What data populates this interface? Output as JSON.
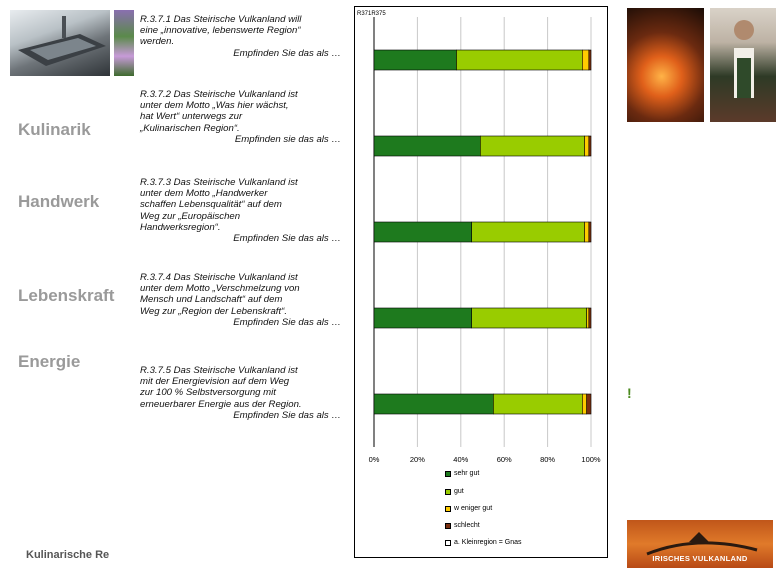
{
  "categories_side": [
    "Kulinarik",
    "Handwerk",
    "Lebenskraft",
    "Energie"
  ],
  "questions": [
    {
      "lines": [
        "R.3.7.1 Das Steirische Vulkanland will",
        "eine „innovative, lebenswerte Region“",
        "werden."
      ],
      "tail": "Empfinden Sie das als …"
    },
    {
      "lines": [
        "R.3.7.2 Das Steirische Vulkanland ist",
        "unter dem Motto „Was hier wächst,",
        "hat Wert“ unterwegs zur",
        "„Kulinarischen Region“."
      ],
      "tail": "Empfinden sie das als …"
    },
    {
      "lines": [
        "R.3.7.3 Das Steirische Vulkanland ist",
        "unter dem Motto „Handwerker",
        "schaffen Lebensqualität“ auf dem",
        "Weg zur „Europäischen",
        "Handwerksregion“."
      ],
      "tail": "Empfinden Sie das als …"
    },
    {
      "lines": [
        "R.3.7.4 Das Steirische Vulkanland ist",
        "unter dem Motto „Verschmelzung von",
        "Mensch und Landschaft“ auf dem",
        "Weg zur „Region der Lebenskraft“."
      ],
      "tail": "Empfinden Sie das als …"
    },
    {
      "lines": [
        "R.3.7.5 Das Steirische Vulkanland ist",
        "mit der Energievision auf dem Weg",
        "zur 100 % Selbstversorgung mit",
        "erneuerbarer Energie aus der Region."
      ],
      "tail": "Empfinden Sie das als …"
    }
  ],
  "footer": "Kulinarische Re",
  "exclamation": "!",
  "logo_text": "IRISCHES VULKANLAND",
  "colors": {
    "sehr_gut": "#1e7a1e",
    "gut": "#99cc00",
    "weniger_gut": "#ffcc00",
    "schlecht": "#7a3010",
    "kleinregion": "#ffffff"
  },
  "chart_data": {
    "type": "bar",
    "orientation": "horizontal",
    "stacked": true,
    "percent": true,
    "title": "R371R375",
    "categories": [
      "R.3.7.1",
      "R.3.7.2",
      "R.3.7.3",
      "R.3.7.4",
      "R.3.7.5"
    ],
    "series": [
      {
        "name": "sehr gut",
        "values": [
          38,
          49,
          45,
          45,
          55
        ]
      },
      {
        "name": "gut",
        "values": [
          58,
          48,
          52,
          53,
          41
        ]
      },
      {
        "name": "w eniger gut",
        "values": [
          3,
          2,
          2,
          1,
          2
        ]
      },
      {
        "name": "schlecht",
        "values": [
          1,
          1,
          1,
          1,
          2
        ]
      },
      {
        "name": "a. Kleinregion = Gnas",
        "values": [
          0,
          0,
          0,
          0,
          0
        ]
      }
    ],
    "xticks": [
      "0%",
      "20%",
      "40%",
      "60%",
      "80%",
      "100%"
    ],
    "xlim": [
      0,
      100
    ],
    "grid": true,
    "legend_position": "bottom"
  }
}
